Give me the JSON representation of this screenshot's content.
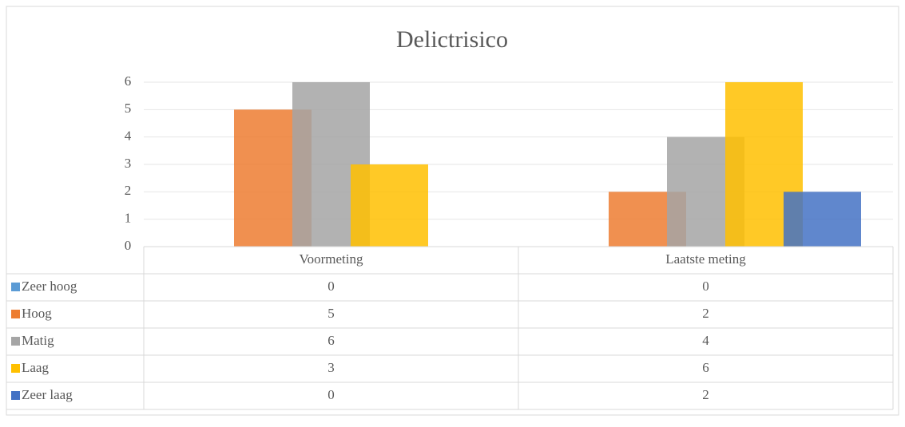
{
  "chart_data": {
    "type": "bar",
    "title": "Delictrisico",
    "categories": [
      "Voormeting",
      "Laatste meting"
    ],
    "series": [
      {
        "name": "Zeer hoog",
        "color": "#5b9bd5",
        "values": [
          0,
          0
        ]
      },
      {
        "name": "Hoog",
        "color": "#ed7d31",
        "values": [
          5,
          2
        ]
      },
      {
        "name": "Matig",
        "color": "#a5a5a5",
        "values": [
          6,
          4
        ]
      },
      {
        "name": "Laag",
        "color": "#ffc000",
        "values": [
          3,
          6
        ]
      },
      {
        "name": "Zeer laag",
        "color": "#4472c4",
        "values": [
          0,
          2
        ]
      }
    ],
    "ylim": [
      0,
      6
    ],
    "yticks": [
      0,
      1,
      2,
      3,
      4,
      5,
      6
    ],
    "grid": true,
    "data_table": true
  }
}
